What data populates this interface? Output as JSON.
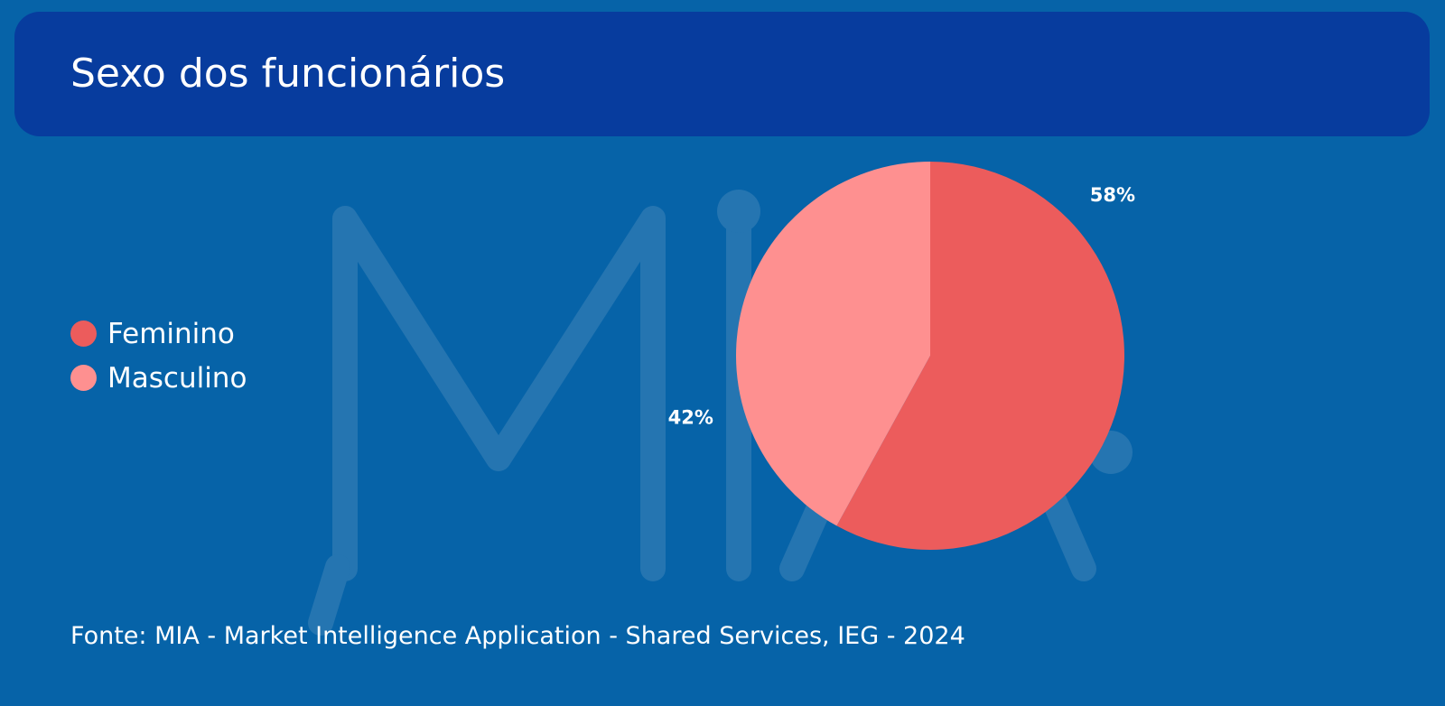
{
  "title": "Sexo dos funcionários",
  "watermark_text": "MIA",
  "chart_data": {
    "type": "pie",
    "title": "Sexo dos funcionários",
    "slices": [
      {
        "label": "Feminino",
        "value": 58,
        "display": "58%",
        "color": "#ec5c5c"
      },
      {
        "label": "Masculino",
        "value": 42,
        "display": "42%",
        "color": "#fe9090"
      }
    ],
    "legend_position": "left"
  },
  "source": "Fonte: MIA - Market Intelligence Application - Shared Services, IEG - 2024",
  "colors": {
    "background": "#0663a8",
    "header": "#073c9e",
    "watermark": "#2575b1"
  }
}
